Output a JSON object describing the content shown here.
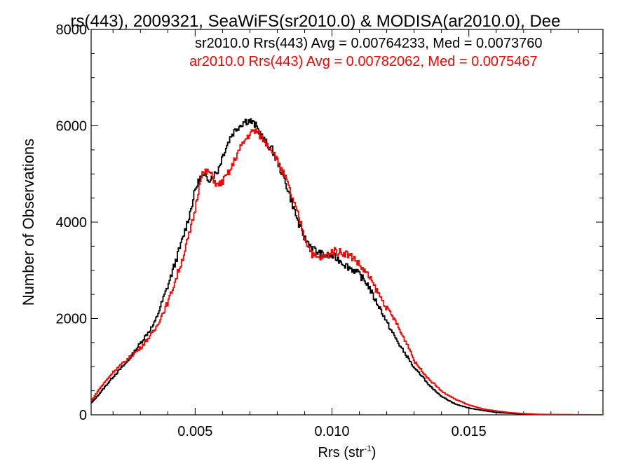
{
  "chart_data": {
    "type": "line",
    "title": "rs(443), 2009321, SeaWiFS(sr2010.0) & MODISA(ar2010.0), Dee",
    "xlabel": "Rrs (str",
    "xlabel_sup": "-1",
    "xlabel_close": ")",
    "ylabel": "Number of Observations",
    "xlim": [
      0.0012,
      0.0199
    ],
    "ylim": [
      0,
      8000
    ],
    "x_ticks": [
      0.005,
      0.01,
      0.015
    ],
    "x_tick_labels": [
      "0.005",
      "0.010",
      "0.015"
    ],
    "y_ticks": [
      0,
      2000,
      4000,
      6000,
      8000
    ],
    "y_tick_labels": [
      "0",
      "2000",
      "4000",
      "6000",
      "8000"
    ],
    "grid": false,
    "legend_position": "top-right",
    "series": [
      {
        "name": "sr2010.0 Rrs(443) Avg = 0.00764233, Med = 0.0073760",
        "color": "#000000",
        "x": [
          0.0012,
          0.0015,
          0.002,
          0.0025,
          0.003,
          0.0035,
          0.004,
          0.0045,
          0.0048,
          0.005,
          0.0052,
          0.0055,
          0.0058,
          0.006,
          0.0063,
          0.0065,
          0.0068,
          0.007,
          0.0072,
          0.0075,
          0.0078,
          0.008,
          0.0083,
          0.0085,
          0.0088,
          0.009,
          0.0093,
          0.0095,
          0.0098,
          0.01,
          0.0103,
          0.0105,
          0.0108,
          0.011,
          0.0113,
          0.0115,
          0.0118,
          0.012,
          0.0123,
          0.0125,
          0.0128,
          0.013,
          0.0133,
          0.0135,
          0.0138,
          0.014,
          0.0145,
          0.015,
          0.0155,
          0.016,
          0.0165,
          0.017,
          0.0175,
          0.018,
          0.019,
          0.0199
        ],
        "y": [
          250,
          450,
          800,
          1100,
          1500,
          1900,
          2700,
          3600,
          4200,
          4700,
          4950,
          4900,
          5050,
          5400,
          5800,
          5950,
          6100,
          6100,
          6000,
          5700,
          5500,
          5250,
          4800,
          4450,
          3900,
          3650,
          3450,
          3350,
          3300,
          3300,
          3200,
          3100,
          3000,
          2900,
          2700,
          2450,
          2150,
          1900,
          1600,
          1400,
          1150,
          950,
          800,
          620,
          480,
          380,
          220,
          140,
          90,
          50,
          30,
          15,
          8,
          5,
          2,
          1
        ]
      },
      {
        "name": "ar2010.0 Rrs(443) Avg = 0.00782062, Med = 0.0075467",
        "color": "#ff0000",
        "x": [
          0.0012,
          0.0015,
          0.002,
          0.0025,
          0.003,
          0.0035,
          0.004,
          0.0045,
          0.0048,
          0.005,
          0.0052,
          0.0055,
          0.0058,
          0.006,
          0.0063,
          0.0065,
          0.0068,
          0.007,
          0.0072,
          0.0075,
          0.0078,
          0.008,
          0.0083,
          0.0085,
          0.0088,
          0.009,
          0.0093,
          0.0095,
          0.0098,
          0.01,
          0.0103,
          0.0105,
          0.0108,
          0.011,
          0.0113,
          0.0115,
          0.0118,
          0.012,
          0.0123,
          0.0125,
          0.0128,
          0.013,
          0.0133,
          0.0135,
          0.0138,
          0.014,
          0.0145,
          0.015,
          0.0155,
          0.016,
          0.0165,
          0.017,
          0.0175,
          0.018,
          0.019,
          0.0199
        ],
        "y": [
          300,
          550,
          900,
          1150,
          1400,
          1750,
          2350,
          3200,
          3800,
          4300,
          5000,
          5050,
          4750,
          4850,
          5100,
          5400,
          5700,
          5850,
          5900,
          5700,
          5500,
          5250,
          4900,
          4550,
          4050,
          3650,
          3300,
          3250,
          3300,
          3400,
          3380,
          3350,
          3250,
          3100,
          2900,
          2700,
          2400,
          2200,
          1950,
          1700,
          1400,
          1100,
          900,
          750,
          600,
          480,
          320,
          200,
          120,
          80,
          45,
          25,
          12,
          6,
          3,
          1
        ]
      }
    ]
  }
}
